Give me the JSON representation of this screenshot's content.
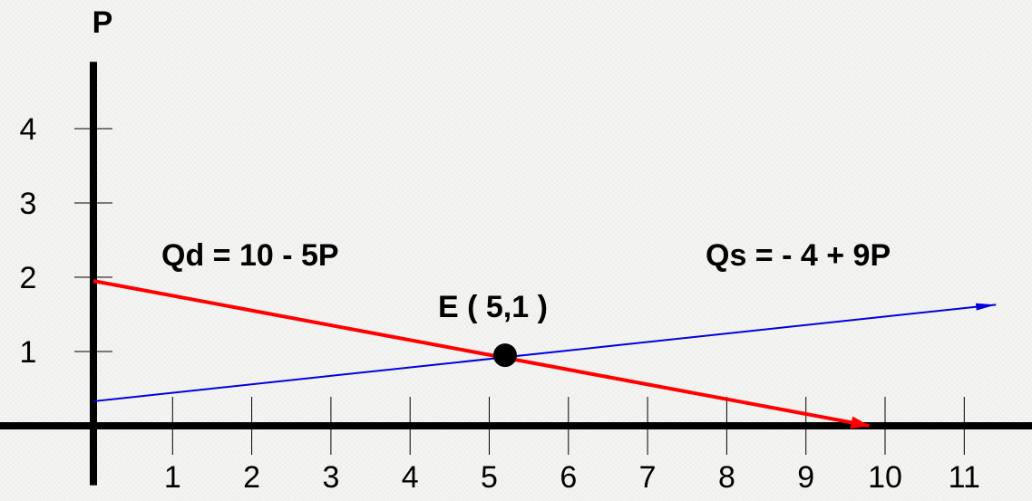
{
  "chart_data": {
    "type": "line",
    "ylabel": "P",
    "xlabel": "",
    "xlim": [
      0,
      11.5
    ],
    "ylim": [
      -0.8,
      4.9
    ],
    "x_ticks": [
      1,
      2,
      3,
      4,
      5,
      6,
      7,
      8,
      9,
      10,
      11
    ],
    "y_ticks": [
      1,
      2,
      3,
      4
    ],
    "grid": false,
    "series": [
      {
        "name": "Qd = 10 - 5P",
        "color": "#ff0000",
        "points": [
          [
            0,
            1.95
          ],
          [
            9.8,
            0
          ]
        ]
      },
      {
        "name": "Qs = - 4 + 9P",
        "color": "#0000dd",
        "points": [
          [
            0,
            0.33
          ],
          [
            11.4,
            1.63
          ]
        ]
      }
    ],
    "equilibrium": {
      "label": "E ( 5,1 )",
      "x": 5.2,
      "y": 0.95
    },
    "annotations": [
      "Qd = 10 - 5P",
      "Qs = - 4 + 9P",
      "E ( 5,1 )"
    ]
  }
}
